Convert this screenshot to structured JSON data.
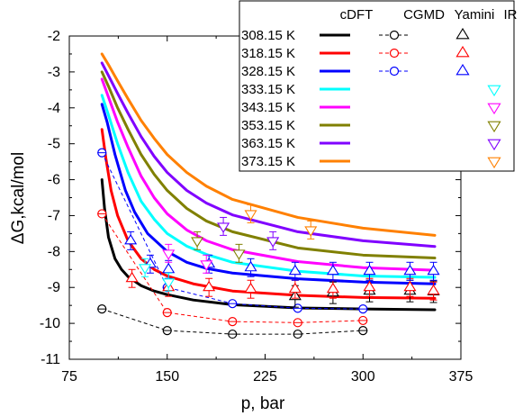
{
  "chart_data": {
    "type": "line",
    "title": "",
    "xlabel": "p, bar",
    "ylabel": "ΔG,kcal/mol",
    "xlim": [
      75,
      375
    ],
    "ylim": [
      -11,
      -2
    ],
    "xticks": [
      "75",
      "150",
      "225",
      "300",
      "375"
    ],
    "yticks": [
      "-11",
      "-10",
      "-9",
      "-8",
      "-7",
      "-6",
      "-5",
      "-4",
      "-3",
      "-2"
    ],
    "legend": {
      "headers": [
        "cDFT",
        "CGMD",
        "Yamini",
        "IR"
      ],
      "rows": [
        {
          "label": "308.15 K",
          "color": "#000000",
          "has_cdft": true,
          "has_cgmd": true,
          "has_yamini": true,
          "has_ir": false
        },
        {
          "label": "318.15 K",
          "color": "#ff0000",
          "has_cdft": true,
          "has_cgmd": true,
          "has_yamini": true,
          "has_ir": false
        },
        {
          "label": "328.15 K",
          "color": "#0000ff",
          "has_cdft": true,
          "has_cgmd": true,
          "has_yamini": true,
          "has_ir": false
        },
        {
          "label": "333.15 K",
          "color": "#00ffff",
          "has_cdft": true,
          "has_cgmd": false,
          "has_yamini": false,
          "has_ir": true
        },
        {
          "label": "343.15 K",
          "color": "#ff00ff",
          "has_cdft": true,
          "has_cgmd": false,
          "has_yamini": false,
          "has_ir": true
        },
        {
          "label": "353.15 K",
          "color": "#808000",
          "has_cdft": true,
          "has_cgmd": false,
          "has_yamini": false,
          "has_ir": true
        },
        {
          "label": "363.15 K",
          "color": "#8000ff",
          "has_cdft": true,
          "has_cgmd": false,
          "has_yamini": false,
          "has_ir": true
        },
        {
          "label": "373.15 K",
          "color": "#ff8000",
          "has_cdft": true,
          "has_cgmd": false,
          "has_yamini": false,
          "has_ir": true
        }
      ]
    },
    "cdft_curves": [
      {
        "name": "308.15 K",
        "color": "#000000",
        "x": [
          100,
          102,
          105,
          110,
          115,
          120,
          130,
          140,
          150,
          170,
          200,
          250,
          300,
          355
        ],
        "y": [
          -6.0,
          -6.8,
          -7.6,
          -8.2,
          -8.5,
          -8.7,
          -8.95,
          -9.1,
          -9.2,
          -9.35,
          -9.48,
          -9.57,
          -9.6,
          -9.62
        ]
      },
      {
        "name": "318.15 K",
        "color": "#ff0000",
        "x": [
          100,
          103,
          107,
          112,
          120,
          130,
          140,
          150,
          170,
          200,
          250,
          300,
          355
        ],
        "y": [
          -4.6,
          -5.4,
          -6.3,
          -7.0,
          -7.7,
          -8.2,
          -8.5,
          -8.68,
          -8.9,
          -9.1,
          -9.22,
          -9.28,
          -9.3
        ]
      },
      {
        "name": "328.15 K",
        "color": "#0000ff",
        "x": [
          100,
          104,
          110,
          118,
          125,
          135,
          150,
          165,
          180,
          200,
          250,
          300,
          355
        ],
        "y": [
          -3.9,
          -4.4,
          -5.3,
          -6.3,
          -6.9,
          -7.5,
          -8.0,
          -8.3,
          -8.47,
          -8.6,
          -8.76,
          -8.85,
          -8.9
        ]
      },
      {
        "name": "333.15 K",
        "color": "#00ffff",
        "x": [
          100,
          105,
          112,
          120,
          130,
          140,
          150,
          165,
          180,
          200,
          250,
          300,
          355
        ],
        "y": [
          -3.65,
          -4.2,
          -5.0,
          -5.8,
          -6.6,
          -7.1,
          -7.5,
          -7.85,
          -8.08,
          -8.3,
          -8.55,
          -8.68,
          -8.72
        ]
      },
      {
        "name": "343.15 K",
        "color": "#ff00ff",
        "x": [
          100,
          105,
          112,
          120,
          130,
          140,
          150,
          165,
          180,
          200,
          250,
          300,
          355
        ],
        "y": [
          -3.2,
          -3.7,
          -4.4,
          -5.1,
          -5.9,
          -6.5,
          -6.95,
          -7.4,
          -7.7,
          -7.95,
          -8.28,
          -8.45,
          -8.52
        ]
      },
      {
        "name": "353.15 K",
        "color": "#808000",
        "x": [
          100,
          105,
          112,
          120,
          130,
          140,
          150,
          165,
          180,
          200,
          250,
          300,
          355
        ],
        "y": [
          -3.0,
          -3.4,
          -4.0,
          -4.6,
          -5.3,
          -5.85,
          -6.3,
          -6.8,
          -7.15,
          -7.45,
          -7.9,
          -8.1,
          -8.18
        ]
      },
      {
        "name": "363.15 K",
        "color": "#8000ff",
        "x": [
          100,
          105,
          112,
          120,
          130,
          140,
          150,
          165,
          180,
          200,
          250,
          300,
          355
        ],
        "y": [
          -2.75,
          -3.1,
          -3.6,
          -4.15,
          -4.8,
          -5.35,
          -5.8,
          -6.3,
          -6.65,
          -6.98,
          -7.45,
          -7.7,
          -7.86
        ]
      },
      {
        "name": "373.15 K",
        "color": "#ff8000",
        "x": [
          100,
          105,
          112,
          120,
          130,
          140,
          150,
          165,
          180,
          200,
          250,
          300,
          355
        ],
        "y": [
          -2.5,
          -2.8,
          -3.25,
          -3.75,
          -4.35,
          -4.85,
          -5.3,
          -5.8,
          -6.18,
          -6.55,
          -7.05,
          -7.35,
          -7.55
        ]
      }
    ],
    "cgmd_series": [
      {
        "name": "308.15 K",
        "color": "#000000",
        "x": [
          100,
          150,
          200,
          250,
          300
        ],
        "y": [
          -9.6,
          -10.2,
          -10.3,
          -10.3,
          -10.2
        ]
      },
      {
        "name": "318.15 K",
        "color": "#ff0000",
        "x": [
          100,
          150,
          200,
          250,
          300
        ],
        "y": [
          -6.95,
          -9.7,
          -9.95,
          -9.98,
          -9.92
        ]
      },
      {
        "name": "328.15 K",
        "color": "#0000ff",
        "x": [
          100,
          150,
          200,
          250,
          300
        ],
        "y": [
          -5.25,
          -9.0,
          -9.45,
          -9.58,
          -9.6
        ]
      }
    ],
    "yamini_series": [
      {
        "name": "308.15 K",
        "color": "#000000",
        "x": [
          248,
          277,
          305,
          336,
          354
        ],
        "y": [
          -9.25,
          -9.15,
          -9.1,
          -9.1,
          -9.12
        ],
        "err": [
          0.3,
          0.3,
          0.3,
          0.3,
          0.3
        ]
      },
      {
        "name": "318.15 K",
        "color": "#ff0000",
        "x": [
          123,
          151,
          182,
          214,
          248,
          277,
          305,
          336,
          354
        ],
        "y": [
          -8.75,
          -9.0,
          -9.0,
          -9.05,
          -9.05,
          -9.05,
          -9.0,
          -9.0,
          -9.1
        ],
        "err": [
          0.25,
          0.25,
          0.25,
          0.25,
          0.25,
          0.25,
          0.25,
          0.25,
          0.25
        ]
      },
      {
        "name": "328.15 K",
        "color": "#0000ff",
        "x": [
          122,
          137,
          151,
          182,
          214,
          248,
          277,
          305,
          336,
          354
        ],
        "y": [
          -7.7,
          -8.35,
          -8.5,
          -8.35,
          -8.45,
          -8.55,
          -8.55,
          -8.55,
          -8.55,
          -8.55
        ],
        "err": [
          0.25,
          0.25,
          0.25,
          0.25,
          0.25,
          0.25,
          0.25,
          0.25,
          0.25,
          0.25
        ]
      }
    ],
    "ir_series": [
      {
        "name": "333.15 K",
        "color": "#00ffff",
        "x": [
          133,
          151
        ],
        "y": [
          -8.45,
          -8.85
        ],
        "err": [
          0.25,
          0.25
        ]
      },
      {
        "name": "343.15 K",
        "color": "#ff00ff",
        "x": [
          151,
          180
        ],
        "y": [
          -8.05,
          -8.35
        ],
        "err": [
          0.25,
          0.25
        ]
      },
      {
        "name": "353.15 K",
        "color": "#808000",
        "x": [
          173,
          205
        ],
        "y": [
          -7.7,
          -8.05
        ],
        "err": [
          0.25,
          0.25
        ]
      },
      {
        "name": "363.15 K",
        "color": "#8000ff",
        "x": [
          193,
          231
        ],
        "y": [
          -7.3,
          -7.7
        ],
        "err": [
          0.25,
          0.25
        ]
      },
      {
        "name": "373.15 K",
        "color": "#ff8000",
        "x": [
          214,
          260
        ],
        "y": [
          -6.95,
          -7.4
        ],
        "err": [
          0.25,
          0.25
        ]
      }
    ]
  }
}
